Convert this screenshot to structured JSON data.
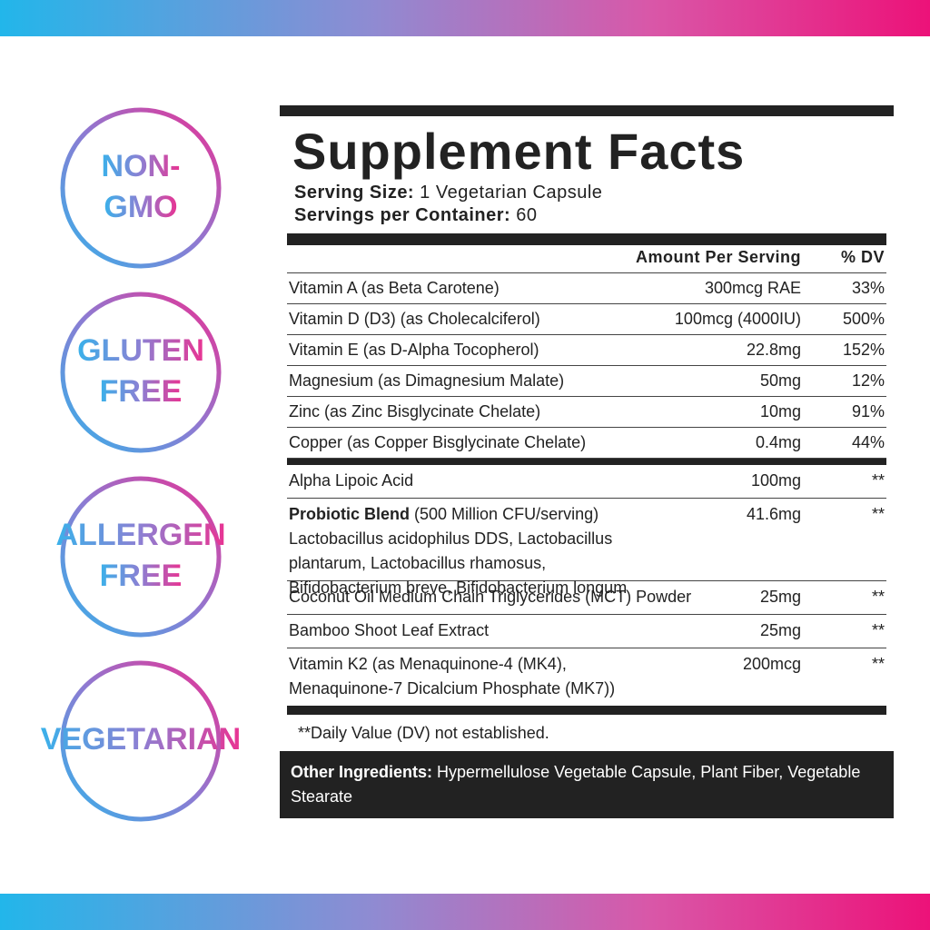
{
  "badges": [
    [
      "NON-",
      "GMO"
    ],
    [
      "GLUTEN",
      "FREE"
    ],
    [
      "ALLERGEN",
      "FREE"
    ],
    [
      "VEGETARIAN"
    ]
  ],
  "panel": {
    "title": "Supplement Facts",
    "serving_size": {
      "label": "Serving Size:",
      "value": "1 Vegetarian Capsule"
    },
    "servings_per_container": {
      "label": "Servings per Container:",
      "value": "60"
    },
    "header": {
      "amount": "Amount Per Serving",
      "dv": "% DV"
    },
    "vitamins": [
      {
        "name": "Vitamin A (as Beta Carotene)",
        "amount": "300mcg RAE",
        "dv": "33%"
      },
      {
        "name": "Vitamin D (D3) (as Cholecalciferol)",
        "amount": "100mcg (4000IU)",
        "dv": "500%"
      },
      {
        "name": "Vitamin E (as D-Alpha Tocopherol)",
        "amount": "22.8mg",
        "dv": "152%"
      },
      {
        "name": "Magnesium (as Dimagnesium Malate)",
        "amount": "50mg",
        "dv": "12%"
      },
      {
        "name": "Zinc (as Zinc Bisglycinate Chelate)",
        "amount": "10mg",
        "dv": "91%"
      },
      {
        "name": "Copper (as Copper Bisglycinate Chelate)",
        "amount": "0.4mg",
        "dv": "44%"
      }
    ],
    "others": [
      {
        "lines": [
          "Alpha Lipoic Acid"
        ],
        "amount": "100mg",
        "dv": "**"
      },
      {
        "bold_name": "Probiotic Blend",
        "lines": [
          "(500 Million CFU/serving)",
          "Lactobacillus acidophilus DDS, Lactobacillus",
          "plantarum, Lactobacillus rhamosus,",
          "Bifidobacterium breve, Bifidobacterium longum"
        ],
        "amount": "41.6mg",
        "dv": "**"
      },
      {
        "lines": [
          "Coconut Oil Medium Chain Triglycerides (MCT) Powder"
        ],
        "amount": "25mg",
        "dv": "**"
      },
      {
        "lines": [
          "Bamboo Shoot Leaf Extract"
        ],
        "amount": "25mg",
        "dv": "**"
      },
      {
        "lines": [
          "Vitamin K2 (as Menaquinone-4 (MK4),",
          "Menaquinone-7 Dicalcium Phosphate (MK7))"
        ],
        "amount": "200mcg",
        "dv": "**"
      }
    ],
    "footnote": "**Daily Value (DV) not established.",
    "other_ingredients": {
      "label": "Other Ingredients:",
      "text": "Hypermellulose Vegetable Capsule, Plant Fiber, Vegetable Stearate"
    }
  }
}
